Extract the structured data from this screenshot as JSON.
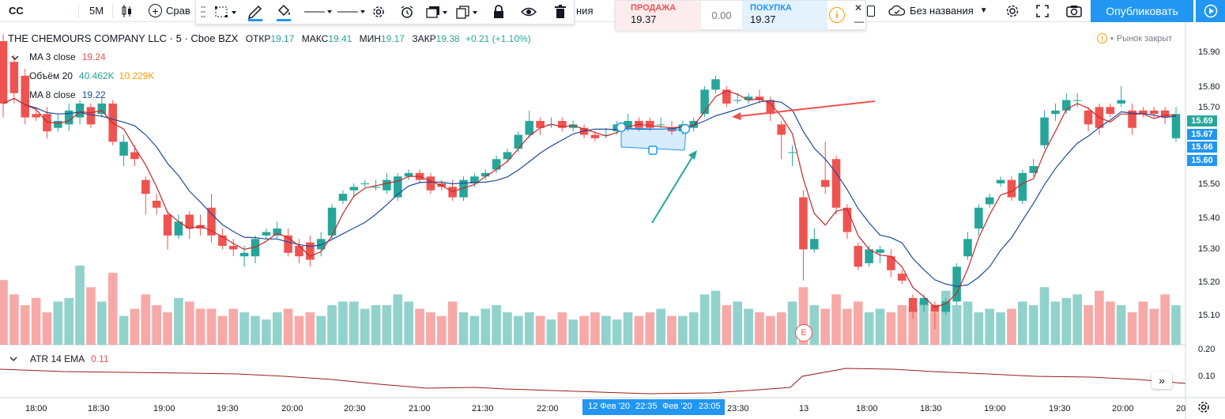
{
  "toolbar": {
    "symbol": "CC",
    "interval": "5M",
    "compare_label": "Срав",
    "hidden_label": "ния",
    "layout_name": "Без названия",
    "publish_label": "Опубликовать"
  },
  "trade_widget": {
    "sell_label": "ПРОДАЖА",
    "sell_price": "19.37",
    "spread": "0.00",
    "buy_label": "ПОКУПКА",
    "buy_price": "19.37"
  },
  "legend": {
    "symbol": "THE CHEMOURS COMPANY LLC · 5 · Cboe BZX",
    "open_label": "ОТКР",
    "open": "19.17",
    "high_label": "МАКС",
    "high": "19.41",
    "low_label": "МИН",
    "low": "19.17",
    "close_label": "ЗАКР",
    "close": "19.38",
    "change": "+0.21 (+1.10%)"
  },
  "indicators": [
    {
      "name": "MA 3 close",
      "values": [
        "19.24"
      ],
      "colors": [
        "#ef5350"
      ]
    },
    {
      "name": "Объём 20",
      "values": [
        "40.462K",
        "10.229K"
      ],
      "colors": [
        "#26a69a",
        "#ff9800"
      ]
    },
    {
      "name": "MA 8 close",
      "values": [
        "19.22"
      ],
      "colors": [
        "#1e3a8a"
      ]
    }
  ],
  "market_status": "Рынок закрыт",
  "atr": {
    "name": "ATR 14 EMA",
    "value": "0.11",
    "axis": [
      "0.20",
      "0.10"
    ]
  },
  "earnings_marker": "E",
  "price_axis": {
    "labels": [
      "15.90",
      "15.80",
      "15.70",
      "15.50",
      "15.40",
      "15.30",
      "15.20",
      "15.10"
    ],
    "tags": [
      {
        "value": "15.69",
        "color": "#26a69a"
      },
      {
        "value": "15.67",
        "color": "#2196f3"
      },
      {
        "value": "15.66",
        "color": "#2196f3"
      },
      {
        "value": "15.60",
        "color": "#2196f3"
      }
    ]
  },
  "time_axis": {
    "labels": [
      "18:00",
      "18:30",
      "19:00",
      "19:30",
      "20:00",
      "20:30",
      "21:00",
      "21:30",
      "22:00",
      "23:30",
      "13",
      "18:00",
      "18:30",
      "19:00",
      "19:30",
      "20:00",
      "20"
    ],
    "selection": [
      "12 Фев '20",
      "22:35",
      "Фев '20",
      "23:05"
    ]
  },
  "colors": {
    "up": "#26a69a",
    "down": "#ef5350",
    "ma3": "#c62828",
    "ma8": "#1e4b9c",
    "accent": "#2196f3"
  },
  "chart_data": {
    "type": "candlestick",
    "candles": [
      [
        15.9,
        15.72,
        15.92,
        15.68
      ],
      [
        15.84,
        15.75,
        15.86,
        15.72
      ],
      [
        15.8,
        15.68,
        15.82,
        15.66
      ],
      [
        15.69,
        15.68,
        15.71,
        15.67
      ],
      [
        15.69,
        15.64,
        15.71,
        15.62
      ],
      [
        15.65,
        15.67,
        15.69,
        15.64
      ],
      [
        15.66,
        15.7,
        15.72,
        15.64
      ],
      [
        15.68,
        15.72,
        15.73,
        15.66
      ],
      [
        15.71,
        15.66,
        15.72,
        15.65
      ],
      [
        15.69,
        15.72,
        15.74,
        15.68
      ],
      [
        15.72,
        15.61,
        15.73,
        15.6
      ],
      [
        15.57,
        15.61,
        15.63,
        15.54
      ],
      [
        15.58,
        15.56,
        15.6,
        15.54
      ],
      [
        15.5,
        15.46,
        15.51,
        15.4
      ],
      [
        15.44,
        15.42,
        15.46,
        15.4
      ],
      [
        15.4,
        15.34,
        15.41,
        15.3
      ],
      [
        15.34,
        15.38,
        15.4,
        15.33
      ],
      [
        15.4,
        15.36,
        15.41,
        15.33
      ],
      [
        15.37,
        15.36,
        15.4,
        15.34
      ],
      [
        15.42,
        15.34,
        15.46,
        15.32
      ],
      [
        15.34,
        15.31,
        15.36,
        15.3
      ],
      [
        15.31,
        15.3,
        15.33,
        15.28
      ],
      [
        15.28,
        15.29,
        15.31,
        15.25
      ],
      [
        15.28,
        15.33,
        15.34,
        15.26
      ],
      [
        15.34,
        15.35,
        15.36,
        15.33
      ],
      [
        15.34,
        15.36,
        15.38,
        15.33
      ],
      [
        15.34,
        15.29,
        15.36,
        15.28
      ],
      [
        15.31,
        15.28,
        15.33,
        15.26
      ],
      [
        15.32,
        15.27,
        15.34,
        15.25
      ],
      [
        15.3,
        15.33,
        15.35,
        15.28
      ],
      [
        15.34,
        15.42,
        15.43,
        15.33
      ],
      [
        15.44,
        15.46,
        15.47,
        15.43
      ],
      [
        15.47,
        15.48,
        15.49,
        15.45
      ],
      [
        15.49,
        15.49,
        15.5,
        15.48
      ],
      [
        15.48,
        15.48,
        15.5,
        15.47
      ],
      [
        15.47,
        15.5,
        15.52,
        15.46
      ],
      [
        15.45,
        15.51,
        15.52,
        15.44
      ],
      [
        15.51,
        15.52,
        15.53,
        15.5
      ],
      [
        15.52,
        15.5,
        15.53,
        15.49
      ],
      [
        15.51,
        15.47,
        15.52,
        15.46
      ],
      [
        15.49,
        15.48,
        15.5,
        15.47
      ],
      [
        15.48,
        15.45,
        15.5,
        15.44
      ],
      [
        15.45,
        15.5,
        15.51,
        15.44
      ],
      [
        15.49,
        15.51,
        15.52,
        15.48
      ],
      [
        15.51,
        15.52,
        15.53,
        15.5
      ],
      [
        15.53,
        15.56,
        15.57,
        15.52
      ],
      [
        15.56,
        15.58,
        15.59,
        15.55
      ],
      [
        15.59,
        15.63,
        15.64,
        15.58
      ],
      [
        15.63,
        15.67,
        15.7,
        15.62
      ],
      [
        15.67,
        15.65,
        15.68,
        15.63
      ],
      [
        15.66,
        15.66,
        15.68,
        15.65
      ],
      [
        15.67,
        15.65,
        15.68,
        15.64
      ],
      [
        15.65,
        15.66,
        15.67,
        15.64
      ],
      [
        15.65,
        15.63,
        15.66,
        15.62
      ],
      [
        15.63,
        15.62,
        15.64,
        15.61
      ],
      [
        15.63,
        15.63,
        15.65,
        15.62
      ],
      [
        15.64,
        15.66,
        15.67,
        15.63
      ],
      [
        15.65,
        15.67,
        15.69,
        15.64
      ],
      [
        15.67,
        15.65,
        15.68,
        15.64
      ],
      [
        15.67,
        15.65,
        15.68,
        15.64
      ],
      [
        15.66,
        15.66,
        15.68,
        15.65
      ],
      [
        15.65,
        15.64,
        15.67,
        15.63
      ],
      [
        15.64,
        15.66,
        15.67,
        15.63
      ],
      [
        15.65,
        15.67,
        15.68,
        15.64
      ],
      [
        15.69,
        15.76,
        15.77,
        15.68
      ],
      [
        15.76,
        15.79,
        15.8,
        15.75
      ],
      [
        15.76,
        15.72,
        15.77,
        15.71
      ],
      [
        15.73,
        15.73,
        15.75,
        15.72
      ],
      [
        15.73,
        15.74,
        15.75,
        15.72
      ],
      [
        15.74,
        15.73,
        15.76,
        15.72
      ],
      [
        15.73,
        15.69,
        15.74,
        15.67
      ],
      [
        15.66,
        15.63,
        15.67,
        15.56
      ],
      [
        15.58,
        15.58,
        15.6,
        15.54
      ],
      [
        15.45,
        15.3,
        15.47,
        15.21
      ],
      [
        15.3,
        15.33,
        15.36,
        15.29
      ],
      [
        15.5,
        15.48,
        15.61,
        15.46
      ],
      [
        15.56,
        15.42,
        15.57,
        15.4
      ],
      [
        15.42,
        15.35,
        15.43,
        15.33
      ],
      [
        15.31,
        15.25,
        15.32,
        15.24
      ],
      [
        15.26,
        15.3,
        15.31,
        15.25
      ],
      [
        15.29,
        15.3,
        15.31,
        15.26
      ],
      [
        15.28,
        15.24,
        15.3,
        15.22
      ],
      [
        15.23,
        15.21,
        15.24,
        15.2
      ],
      [
        15.16,
        15.12,
        15.17,
        15.1
      ],
      [
        15.14,
        15.16,
        15.17,
        15.12
      ],
      [
        15.14,
        15.12,
        15.15,
        15.07
      ],
      [
        15.12,
        15.15,
        15.16,
        15.11
      ],
      [
        15.15,
        15.25,
        15.26,
        15.14
      ],
      [
        15.28,
        15.33,
        15.35,
        15.27
      ],
      [
        15.36,
        15.42,
        15.43,
        15.34
      ],
      [
        15.43,
        15.45,
        15.46,
        15.42
      ],
      [
        15.49,
        15.5,
        15.51,
        15.48
      ],
      [
        15.5,
        15.45,
        15.51,
        15.44
      ],
      [
        15.44,
        15.52,
        15.53,
        15.43
      ],
      [
        15.52,
        15.54,
        15.56,
        15.51
      ],
      [
        15.6,
        15.68,
        15.7,
        15.59
      ],
      [
        15.69,
        15.7,
        15.72,
        15.67
      ],
      [
        15.7,
        15.73,
        15.75,
        15.69
      ],
      [
        15.73,
        15.73,
        15.75,
        15.71
      ],
      [
        15.7,
        15.66,
        15.71,
        15.64
      ],
      [
        15.71,
        15.65,
        15.72,
        15.63
      ],
      [
        15.71,
        15.69,
        15.72,
        15.68
      ],
      [
        15.72,
        15.73,
        15.77,
        15.71
      ],
      [
        15.7,
        15.65,
        15.72,
        15.63
      ],
      [
        15.7,
        15.69,
        15.71,
        15.68
      ],
      [
        15.7,
        15.69,
        15.71,
        15.68
      ],
      [
        15.7,
        15.68,
        15.71,
        15.66
      ],
      [
        15.62,
        15.69,
        15.71,
        15.61
      ]
    ],
    "volumes": [
      18,
      14,
      11,
      13,
      9,
      12,
      13,
      22,
      16,
      12,
      20,
      8,
      10,
      14,
      11,
      9,
      13,
      12,
      10,
      10,
      8,
      10,
      9,
      8,
      7,
      9,
      10,
      8,
      9,
      8,
      11,
      12,
      12,
      10,
      11,
      11,
      14,
      12,
      10,
      9,
      8,
      12,
      9,
      8,
      10,
      11,
      9,
      8,
      9,
      8,
      7,
      9,
      7,
      8,
      9,
      8,
      7,
      9,
      8,
      9,
      10,
      8,
      8,
      9,
      14,
      15,
      11,
      12,
      10,
      9,
      8,
      9,
      12,
      16,
      11,
      10,
      14,
      10,
      12,
      9,
      10,
      9,
      11,
      10,
      12,
      9,
      15,
      11,
      12,
      9,
      10,
      9,
      10,
      12,
      11,
      16,
      12,
      13,
      14,
      11,
      15,
      12,
      11,
      9,
      12,
      10,
      14,
      11
    ],
    "price_range": [
      15.03,
      15.95
    ],
    "atr_range": [
      0.0,
      0.22
    ]
  }
}
